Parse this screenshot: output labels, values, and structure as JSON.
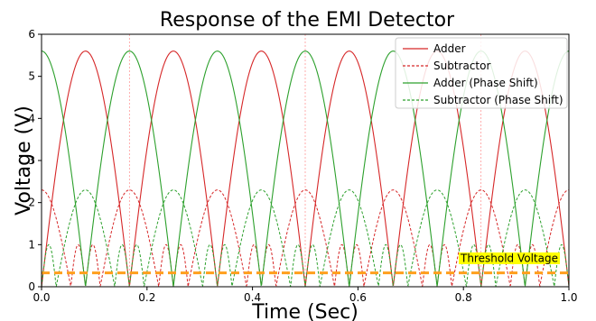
{
  "chart_data": {
    "type": "line",
    "title": "Response of the EMI Detector",
    "xlabel": "Time (Sec)",
    "ylabel": "Voltage (V)",
    "xlim": [
      0.0,
      1.0
    ],
    "ylim": [
      0,
      6
    ],
    "x_ticks": [
      "0.0",
      "0.2",
      "0.4",
      "0.6",
      "0.8",
      "1.0"
    ],
    "y_ticks": [
      "0",
      "1",
      "2",
      "3",
      "4",
      "5",
      "6"
    ],
    "grid": false,
    "legend_position": "top-right",
    "series": [
      {
        "name": "Adder",
        "color": "#d62728",
        "style": "solid",
        "peak": 5.6,
        "period": 0.1667,
        "phase": 0.0,
        "shape": "abs-sine"
      },
      {
        "name": "Subtractor",
        "color": "#d62728",
        "style": "dashed",
        "peak": 2.3,
        "period": 0.1667,
        "phase": 0.0,
        "shape": "abs-cosine-with-minor-lobes",
        "minor_peak": 1.0
      },
      {
        "name": "Adder (Phase Shift)",
        "color": "#2ca02c",
        "style": "solid",
        "peak": 5.6,
        "period": 0.1667,
        "phase": 0.0,
        "shape": "abs-cosine"
      },
      {
        "name": "Subtractor (Phase Shift)",
        "color": "#2ca02c",
        "style": "dashed",
        "peak": 2.3,
        "period": 0.1667,
        "phase": 0.0833,
        "shape": "abs-cosine-with-minor-lobes",
        "minor_peak": 1.0
      }
    ],
    "threshold": {
      "label": "Threshold Voltage",
      "value": 0.33,
      "color": "#ff9f1c",
      "label_bg": "#ffff00"
    },
    "vertical_markers": [
      0.1667,
      0.5,
      0.8333
    ],
    "marker_color": "#ff9999"
  }
}
